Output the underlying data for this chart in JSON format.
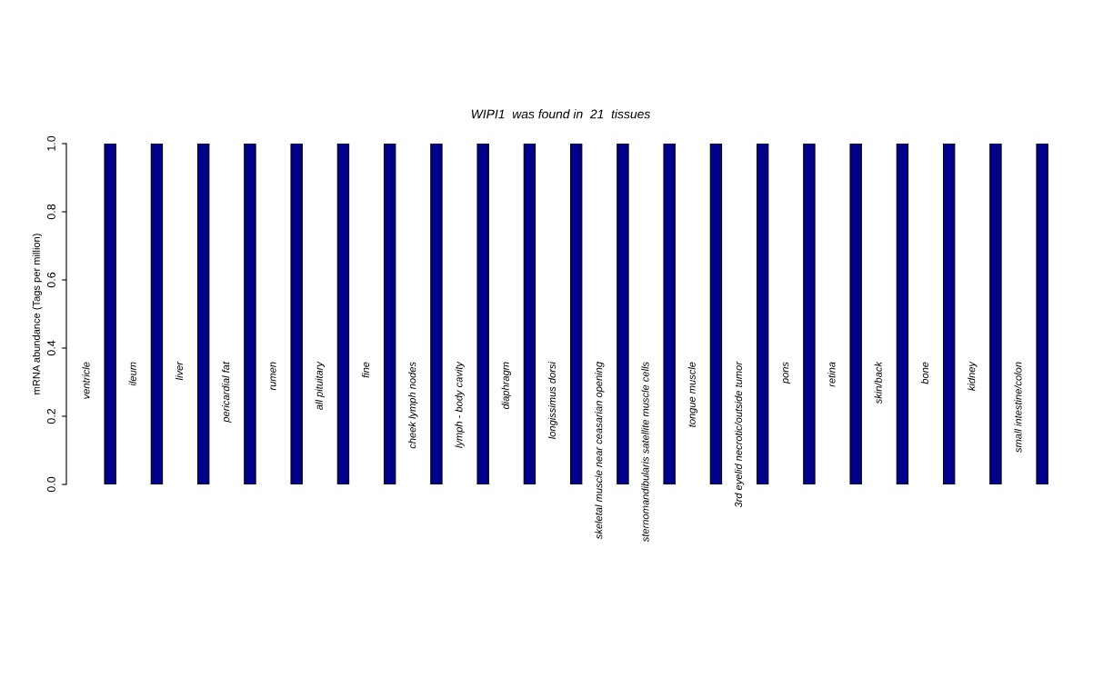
{
  "chart_data": {
    "type": "bar",
    "title": "WIPI1  was found in  21  tissues",
    "ylabel": "mRNA abundance (Tags per million)",
    "categories": [
      "ventricle",
      "ileum",
      "liver",
      "pericardial fat",
      "rumen",
      "all pituitary",
      "fine",
      "cheek lymph nodes",
      "lymph - body cavity",
      "diaphragm",
      "longissimus dorsi",
      "skeletal muscle near ceasarian opening",
      "sternomandibularis satellite muscle cells",
      "tongue muscle",
      "3rd eyelid necrotic/outside tumor",
      "pons",
      "retina",
      "skin/back",
      "bone",
      "kidney",
      "small intestine/colon"
    ],
    "values": [
      1,
      1,
      1,
      1,
      1,
      1,
      1,
      1,
      1,
      1,
      1,
      1,
      1,
      1,
      1,
      1,
      1,
      1,
      1,
      1,
      1
    ],
    "color": "#00008b",
    "ylim": [
      0,
      1
    ],
    "yticks": [
      {
        "value": 0,
        "label": "0.0"
      },
      0.2,
      0.4,
      0.6,
      0.8,
      {
        "value": 1,
        "label": "1.0"
      }
    ],
    "grid": false,
    "legend": false
  }
}
